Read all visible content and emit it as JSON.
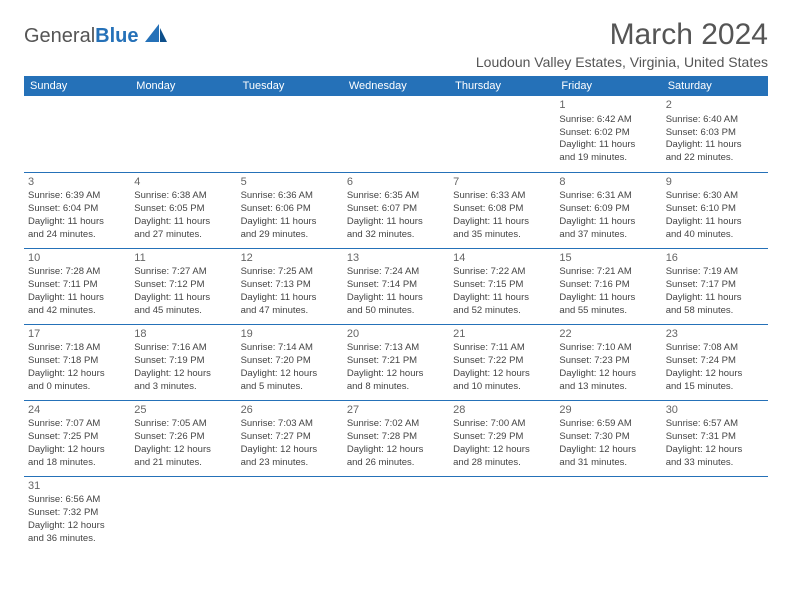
{
  "logo": {
    "text_gray": "General",
    "text_blue": "Blue"
  },
  "title": "March 2024",
  "location": "Loudoun Valley Estates, Virginia, United States",
  "colors": {
    "header_bg": "#2571b8",
    "header_fg": "#ffffff",
    "border": "#2571b8",
    "text": "#444444"
  },
  "day_headers": [
    "Sunday",
    "Monday",
    "Tuesday",
    "Wednesday",
    "Thursday",
    "Friday",
    "Saturday"
  ],
  "weeks": [
    [
      null,
      null,
      null,
      null,
      null,
      {
        "n": "1",
        "sr": "Sunrise: 6:42 AM",
        "ss": "Sunset: 6:02 PM",
        "d1": "Daylight: 11 hours",
        "d2": "and 19 minutes."
      },
      {
        "n": "2",
        "sr": "Sunrise: 6:40 AM",
        "ss": "Sunset: 6:03 PM",
        "d1": "Daylight: 11 hours",
        "d2": "and 22 minutes."
      }
    ],
    [
      {
        "n": "3",
        "sr": "Sunrise: 6:39 AM",
        "ss": "Sunset: 6:04 PM",
        "d1": "Daylight: 11 hours",
        "d2": "and 24 minutes."
      },
      {
        "n": "4",
        "sr": "Sunrise: 6:38 AM",
        "ss": "Sunset: 6:05 PM",
        "d1": "Daylight: 11 hours",
        "d2": "and 27 minutes."
      },
      {
        "n": "5",
        "sr": "Sunrise: 6:36 AM",
        "ss": "Sunset: 6:06 PM",
        "d1": "Daylight: 11 hours",
        "d2": "and 29 minutes."
      },
      {
        "n": "6",
        "sr": "Sunrise: 6:35 AM",
        "ss": "Sunset: 6:07 PM",
        "d1": "Daylight: 11 hours",
        "d2": "and 32 minutes."
      },
      {
        "n": "7",
        "sr": "Sunrise: 6:33 AM",
        "ss": "Sunset: 6:08 PM",
        "d1": "Daylight: 11 hours",
        "d2": "and 35 minutes."
      },
      {
        "n": "8",
        "sr": "Sunrise: 6:31 AM",
        "ss": "Sunset: 6:09 PM",
        "d1": "Daylight: 11 hours",
        "d2": "and 37 minutes."
      },
      {
        "n": "9",
        "sr": "Sunrise: 6:30 AM",
        "ss": "Sunset: 6:10 PM",
        "d1": "Daylight: 11 hours",
        "d2": "and 40 minutes."
      }
    ],
    [
      {
        "n": "10",
        "sr": "Sunrise: 7:28 AM",
        "ss": "Sunset: 7:11 PM",
        "d1": "Daylight: 11 hours",
        "d2": "and 42 minutes."
      },
      {
        "n": "11",
        "sr": "Sunrise: 7:27 AM",
        "ss": "Sunset: 7:12 PM",
        "d1": "Daylight: 11 hours",
        "d2": "and 45 minutes."
      },
      {
        "n": "12",
        "sr": "Sunrise: 7:25 AM",
        "ss": "Sunset: 7:13 PM",
        "d1": "Daylight: 11 hours",
        "d2": "and 47 minutes."
      },
      {
        "n": "13",
        "sr": "Sunrise: 7:24 AM",
        "ss": "Sunset: 7:14 PM",
        "d1": "Daylight: 11 hours",
        "d2": "and 50 minutes."
      },
      {
        "n": "14",
        "sr": "Sunrise: 7:22 AM",
        "ss": "Sunset: 7:15 PM",
        "d1": "Daylight: 11 hours",
        "d2": "and 52 minutes."
      },
      {
        "n": "15",
        "sr": "Sunrise: 7:21 AM",
        "ss": "Sunset: 7:16 PM",
        "d1": "Daylight: 11 hours",
        "d2": "and 55 minutes."
      },
      {
        "n": "16",
        "sr": "Sunrise: 7:19 AM",
        "ss": "Sunset: 7:17 PM",
        "d1": "Daylight: 11 hours",
        "d2": "and 58 minutes."
      }
    ],
    [
      {
        "n": "17",
        "sr": "Sunrise: 7:18 AM",
        "ss": "Sunset: 7:18 PM",
        "d1": "Daylight: 12 hours",
        "d2": "and 0 minutes."
      },
      {
        "n": "18",
        "sr": "Sunrise: 7:16 AM",
        "ss": "Sunset: 7:19 PM",
        "d1": "Daylight: 12 hours",
        "d2": "and 3 minutes."
      },
      {
        "n": "19",
        "sr": "Sunrise: 7:14 AM",
        "ss": "Sunset: 7:20 PM",
        "d1": "Daylight: 12 hours",
        "d2": "and 5 minutes."
      },
      {
        "n": "20",
        "sr": "Sunrise: 7:13 AM",
        "ss": "Sunset: 7:21 PM",
        "d1": "Daylight: 12 hours",
        "d2": "and 8 minutes."
      },
      {
        "n": "21",
        "sr": "Sunrise: 7:11 AM",
        "ss": "Sunset: 7:22 PM",
        "d1": "Daylight: 12 hours",
        "d2": "and 10 minutes."
      },
      {
        "n": "22",
        "sr": "Sunrise: 7:10 AM",
        "ss": "Sunset: 7:23 PM",
        "d1": "Daylight: 12 hours",
        "d2": "and 13 minutes."
      },
      {
        "n": "23",
        "sr": "Sunrise: 7:08 AM",
        "ss": "Sunset: 7:24 PM",
        "d1": "Daylight: 12 hours",
        "d2": "and 15 minutes."
      }
    ],
    [
      {
        "n": "24",
        "sr": "Sunrise: 7:07 AM",
        "ss": "Sunset: 7:25 PM",
        "d1": "Daylight: 12 hours",
        "d2": "and 18 minutes."
      },
      {
        "n": "25",
        "sr": "Sunrise: 7:05 AM",
        "ss": "Sunset: 7:26 PM",
        "d1": "Daylight: 12 hours",
        "d2": "and 21 minutes."
      },
      {
        "n": "26",
        "sr": "Sunrise: 7:03 AM",
        "ss": "Sunset: 7:27 PM",
        "d1": "Daylight: 12 hours",
        "d2": "and 23 minutes."
      },
      {
        "n": "27",
        "sr": "Sunrise: 7:02 AM",
        "ss": "Sunset: 7:28 PM",
        "d1": "Daylight: 12 hours",
        "d2": "and 26 minutes."
      },
      {
        "n": "28",
        "sr": "Sunrise: 7:00 AM",
        "ss": "Sunset: 7:29 PM",
        "d1": "Daylight: 12 hours",
        "d2": "and 28 minutes."
      },
      {
        "n": "29",
        "sr": "Sunrise: 6:59 AM",
        "ss": "Sunset: 7:30 PM",
        "d1": "Daylight: 12 hours",
        "d2": "and 31 minutes."
      },
      {
        "n": "30",
        "sr": "Sunrise: 6:57 AM",
        "ss": "Sunset: 7:31 PM",
        "d1": "Daylight: 12 hours",
        "d2": "and 33 minutes."
      }
    ],
    [
      {
        "n": "31",
        "sr": "Sunrise: 6:56 AM",
        "ss": "Sunset: 7:32 PM",
        "d1": "Daylight: 12 hours",
        "d2": "and 36 minutes."
      },
      null,
      null,
      null,
      null,
      null,
      null
    ]
  ]
}
